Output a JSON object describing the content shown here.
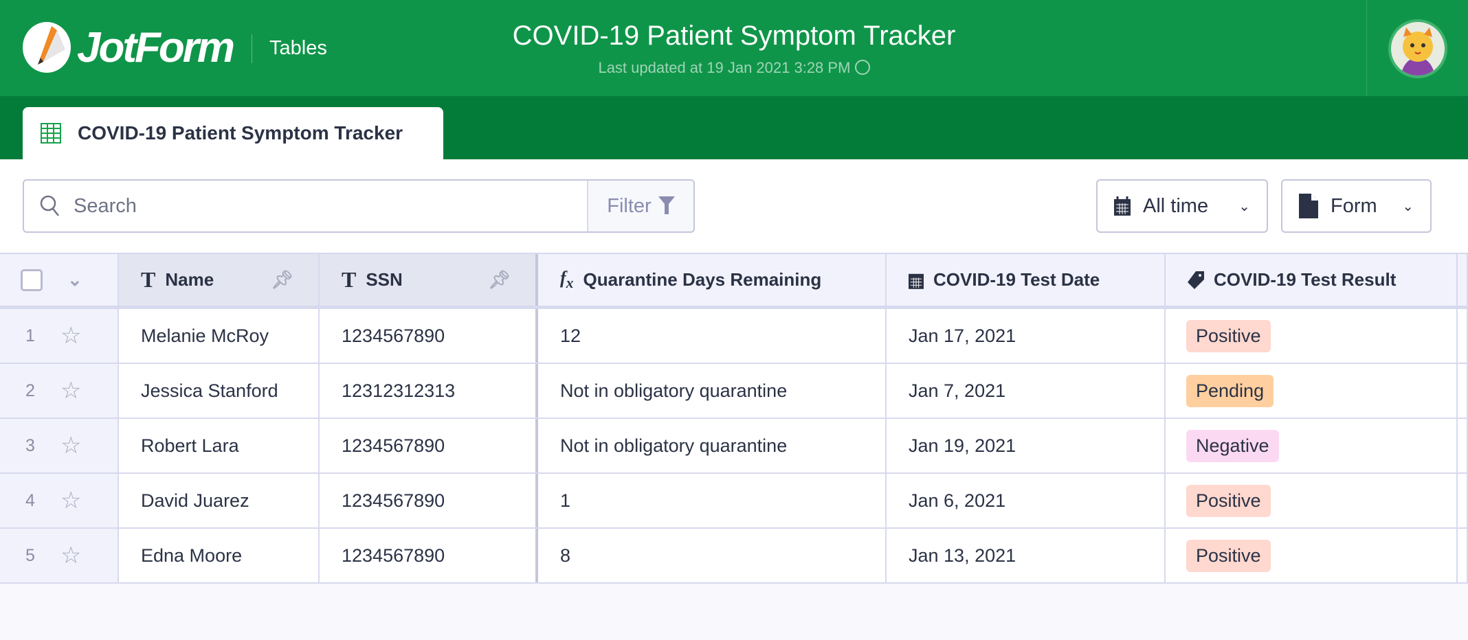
{
  "header": {
    "logo_text": "JotForm",
    "section": "Tables",
    "title": "COVID-19 Patient Symptom Tracker",
    "subtitle": "Last updated at 19 Jan 2021 3:28 PM",
    "brand_color": "#0f9549"
  },
  "tab": {
    "label": "COVID-19 Patient Symptom Tracker",
    "icon": "table-grid-icon"
  },
  "toolbar": {
    "search_placeholder": "Search",
    "filter_label": "Filter",
    "date_range": "All time",
    "form_label": "Form"
  },
  "columns": [
    {
      "label": "Name",
      "icon": "text-T-icon"
    },
    {
      "label": "SSN",
      "icon": "text-T-icon"
    },
    {
      "label": "Quarantine Days Remaining",
      "icon": "formula-fx-icon"
    },
    {
      "label": "COVID-19 Test Date",
      "icon": "calendar-icon"
    },
    {
      "label": "COVID-19 Test Result",
      "icon": "tag-icon"
    }
  ],
  "rows": [
    {
      "index": "1",
      "name": "Melanie McRoy",
      "ssn": "1234567890",
      "quarantine": "12",
      "date": "Jan 17, 2021",
      "result": "Positive",
      "result_color": "#ffd8cf"
    },
    {
      "index": "2",
      "name": "Jessica Stanford",
      "ssn": "12312312313",
      "quarantine": "Not in obligatory quarantine",
      "date": "Jan 7, 2021",
      "result": "Pending",
      "result_color": "#ffcf9f"
    },
    {
      "index": "3",
      "name": "Robert Lara",
      "ssn": "1234567890",
      "quarantine": "Not in obligatory quarantine",
      "date": "Jan 19, 2021",
      "result": "Negative",
      "result_color": "#fcd9f2"
    },
    {
      "index": "4",
      "name": "David Juarez",
      "ssn": "1234567890",
      "quarantine": "1",
      "date": "Jan 6, 2021",
      "result": "Positive",
      "result_color": "#ffd8cf"
    },
    {
      "index": "5",
      "name": "Edna Moore",
      "ssn": "1234567890",
      "quarantine": "8",
      "date": "Jan 13, 2021",
      "result": "Positive",
      "result_color": "#ffd8cf"
    }
  ]
}
